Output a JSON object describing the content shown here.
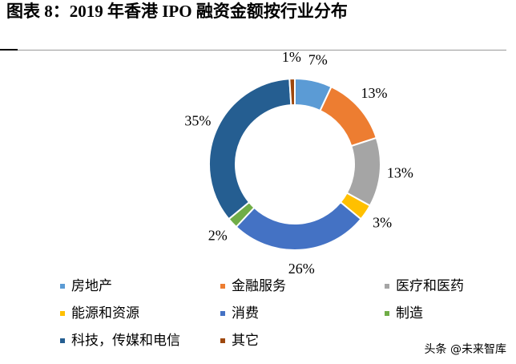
{
  "chart_data": {
    "type": "pie",
    "donut": true,
    "title": "图表 8：2019 年香港 IPO 融资金额按行业分布",
    "categories": [
      "房地产",
      "金融服务",
      "医疗和医药",
      "能源和资源",
      "消费",
      "制造",
      "科技，传媒和电信",
      "其它"
    ],
    "values": [
      7,
      13,
      13,
      3,
      26,
      2,
      35,
      1
    ],
    "value_labels": [
      "7%",
      "13%",
      "13%",
      "3%",
      "26%",
      "2%",
      "35%",
      "1%"
    ],
    "colors": [
      "#5b9bd5",
      "#ed7d31",
      "#a5a5a5",
      "#ffc000",
      "#4472c4",
      "#70ad47",
      "#255e91",
      "#9e480e"
    ]
  },
  "watermark": "头条 @未来智库"
}
